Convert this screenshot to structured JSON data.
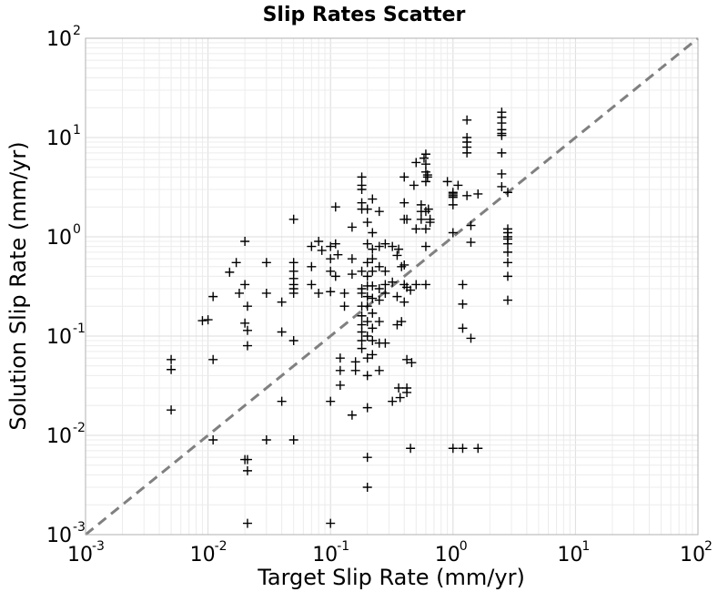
{
  "chart_data": {
    "type": "scatter",
    "title": "Slip Rates Scatter",
    "xlabel": "Target Slip Rate (mm/yr)",
    "ylabel": "Solution Slip Rate (mm/yr)",
    "xscale": "log",
    "yscale": "log",
    "xlim": [
      0.001,
      100
    ],
    "ylim": [
      0.001,
      100
    ],
    "grid": true,
    "marker": "+",
    "marker_color": "#000000",
    "reference_line": {
      "style": "dashed",
      "color": "#808080",
      "from": [
        0.001,
        0.001
      ],
      "to": [
        100,
        100
      ]
    },
    "x_ticks": [
      {
        "base": "10",
        "exp": "-3",
        "value": 0.001
      },
      {
        "base": "10",
        "exp": "-2",
        "value": 0.01
      },
      {
        "base": "10",
        "exp": "-1",
        "value": 0.1
      },
      {
        "base": "10",
        "exp": "0",
        "value": 1
      },
      {
        "base": "10",
        "exp": "1",
        "value": 10
      },
      {
        "base": "10",
        "exp": "2",
        "value": 100
      }
    ],
    "y_ticks": [
      {
        "base": "10",
        "exp": "-3",
        "value": 0.001
      },
      {
        "base": "10",
        "exp": "-2",
        "value": 0.01
      },
      {
        "base": "10",
        "exp": "-1",
        "value": 0.1
      },
      {
        "base": "10",
        "exp": "0",
        "value": 1
      },
      {
        "base": "10",
        "exp": "1",
        "value": 10
      },
      {
        "base": "10",
        "exp": "2",
        "value": 100
      }
    ],
    "points": [
      [
        0.005,
        0.058
      ],
      [
        0.005,
        0.046
      ],
      [
        0.005,
        0.018
      ],
      [
        0.009,
        0.143
      ],
      [
        0.01,
        0.146
      ],
      [
        0.011,
        0.25
      ],
      [
        0.011,
        0.058
      ],
      [
        0.011,
        0.009
      ],
      [
        0.015,
        0.44
      ],
      [
        0.017,
        0.55
      ],
      [
        0.018,
        0.27
      ],
      [
        0.02,
        0.33
      ],
      [
        0.02,
        0.9
      ],
      [
        0.02,
        0.0057
      ],
      [
        0.021,
        0.0057
      ],
      [
        0.021,
        0.0044
      ],
      [
        0.021,
        0.0013
      ],
      [
        0.02,
        0.135
      ],
      [
        0.021,
        0.114
      ],
      [
        0.021,
        0.08
      ],
      [
        0.021,
        0.2
      ],
      [
        0.03,
        0.55
      ],
      [
        0.03,
        0.27
      ],
      [
        0.03,
        0.009
      ],
      [
        0.04,
        0.11
      ],
      [
        0.04,
        0.022
      ],
      [
        0.04,
        0.22
      ],
      [
        0.05,
        1.5
      ],
      [
        0.05,
        0.55
      ],
      [
        0.05,
        0.45
      ],
      [
        0.05,
        0.38
      ],
      [
        0.05,
        0.33
      ],
      [
        0.05,
        0.3
      ],
      [
        0.05,
        0.27
      ],
      [
        0.05,
        0.09
      ],
      [
        0.05,
        0.009
      ],
      [
        0.07,
        0.33
      ],
      [
        0.07,
        0.5
      ],
      [
        0.07,
        0.8
      ],
      [
        0.08,
        0.9
      ],
      [
        0.08,
        0.27
      ],
      [
        0.085,
        0.73
      ],
      [
        0.1,
        0.8
      ],
      [
        0.1,
        0.6
      ],
      [
        0.1,
        0.45
      ],
      [
        0.1,
        0.28
      ],
      [
        0.1,
        0.022
      ],
      [
        0.1,
        0.0013
      ],
      [
        0.11,
        2.0
      ],
      [
        0.11,
        0.85
      ],
      [
        0.115,
        0.66
      ],
      [
        0.11,
        0.4
      ],
      [
        0.12,
        0.06
      ],
      [
        0.12,
        0.045
      ],
      [
        0.12,
        0.032
      ],
      [
        0.13,
        0.27
      ],
      [
        0.13,
        0.2
      ],
      [
        0.15,
        1.25
      ],
      [
        0.15,
        0.6
      ],
      [
        0.15,
        0.42
      ],
      [
        0.15,
        0.016
      ],
      [
        0.16,
        0.055
      ],
      [
        0.16,
        0.045
      ],
      [
        0.18,
        4.0
      ],
      [
        0.18,
        3.3
      ],
      [
        0.18,
        3.0
      ],
      [
        0.18,
        2.2
      ],
      [
        0.18,
        1.9
      ],
      [
        0.18,
        0.45
      ],
      [
        0.18,
        0.3
      ],
      [
        0.18,
        0.27
      ],
      [
        0.18,
        0.2
      ],
      [
        0.18,
        0.16
      ],
      [
        0.18,
        0.13
      ],
      [
        0.18,
        0.11
      ],
      [
        0.18,
        0.09
      ],
      [
        0.18,
        0.075
      ],
      [
        0.2,
        1.9
      ],
      [
        0.2,
        1.4
      ],
      [
        0.2,
        0.85
      ],
      [
        0.2,
        0.55
      ],
      [
        0.2,
        0.4
      ],
      [
        0.2,
        0.32
      ],
      [
        0.2,
        0.25
      ],
      [
        0.2,
        0.2
      ],
      [
        0.2,
        0.14
      ],
      [
        0.2,
        0.1
      ],
      [
        0.2,
        0.06
      ],
      [
        0.2,
        0.04
      ],
      [
        0.2,
        0.019
      ],
      [
        0.2,
        0.006
      ],
      [
        0.2,
        0.003
      ],
      [
        0.22,
        2.4
      ],
      [
        0.22,
        1.1
      ],
      [
        0.22,
        0.75
      ],
      [
        0.22,
        0.6
      ],
      [
        0.22,
        0.45
      ],
      [
        0.22,
        0.32
      ],
      [
        0.22,
        0.24
      ],
      [
        0.22,
        0.17
      ],
      [
        0.22,
        0.12
      ],
      [
        0.22,
        0.09
      ],
      [
        0.22,
        0.065
      ],
      [
        0.25,
        1.8
      ],
      [
        0.25,
        0.8
      ],
      [
        0.25,
        0.5
      ],
      [
        0.25,
        0.3
      ],
      [
        0.25,
        0.23
      ],
      [
        0.25,
        0.14
      ],
      [
        0.25,
        0.085
      ],
      [
        0.25,
        0.045
      ],
      [
        0.28,
        0.85
      ],
      [
        0.28,
        0.45
      ],
      [
        0.28,
        0.33
      ],
      [
        0.28,
        0.27
      ],
      [
        0.28,
        0.085
      ],
      [
        0.32,
        0.8
      ],
      [
        0.32,
        0.35
      ],
      [
        0.32,
        0.022
      ],
      [
        0.35,
        0.65
      ],
      [
        0.35,
        0.25
      ],
      [
        0.35,
        0.13
      ],
      [
        0.36,
        0.75
      ],
      [
        0.36,
        0.03
      ],
      [
        0.37,
        0.024
      ],
      [
        0.38,
        0.5
      ],
      [
        0.38,
        0.14
      ],
      [
        0.4,
        4.0
      ],
      [
        0.4,
        2.2
      ],
      [
        0.4,
        1.5
      ],
      [
        0.4,
        0.52
      ],
      [
        0.4,
        0.33
      ],
      [
        0.4,
        0.22
      ],
      [
        0.42,
        1.5
      ],
      [
        0.42,
        0.31
      ],
      [
        0.42,
        0.058
      ],
      [
        0.42,
        0.03
      ],
      [
        0.42,
        0.027
      ],
      [
        0.45,
        0.29
      ],
      [
        0.45,
        0.0074
      ],
      [
        0.46,
        0.054
      ],
      [
        0.48,
        3.3
      ],
      [
        0.5,
        5.6
      ],
      [
        0.5,
        1.2
      ],
      [
        0.5,
        0.33
      ],
      [
        0.55,
        2.1
      ],
      [
        0.55,
        1.8
      ],
      [
        0.55,
        1.5
      ],
      [
        0.58,
        6.2
      ],
      [
        0.6,
        6.8
      ],
      [
        0.6,
        5.4
      ],
      [
        0.6,
        4.5
      ],
      [
        0.6,
        3.6
      ],
      [
        0.6,
        1.8
      ],
      [
        0.6,
        1.2
      ],
      [
        0.6,
        0.8
      ],
      [
        0.6,
        0.33
      ],
      [
        0.62,
        4.2
      ],
      [
        0.62,
        4.0
      ],
      [
        0.63,
        1.9
      ],
      [
        0.65,
        1.5
      ],
      [
        0.65,
        1.4
      ],
      [
        0.9,
        3.6
      ],
      [
        1.0,
        2.8
      ],
      [
        1.0,
        2.7
      ],
      [
        1.0,
        2.6
      ],
      [
        1.0,
        2.5
      ],
      [
        1.0,
        2.1
      ],
      [
        1.0,
        1.1
      ],
      [
        1.0,
        0.0074
      ],
      [
        1.1,
        3.3
      ],
      [
        1.2,
        0.33
      ],
      [
        1.2,
        0.21
      ],
      [
        1.2,
        0.12
      ],
      [
        1.2,
        0.0074
      ],
      [
        1.3,
        15
      ],
      [
        1.3,
        10
      ],
      [
        1.3,
        9
      ],
      [
        1.3,
        8
      ],
      [
        1.3,
        7
      ],
      [
        1.3,
        2.6
      ],
      [
        1.4,
        1.3
      ],
      [
        1.4,
        0.88
      ],
      [
        1.4,
        0.095
      ],
      [
        1.6,
        2.7
      ],
      [
        1.6,
        0.0074
      ],
      [
        2.5,
        18
      ],
      [
        2.5,
        16
      ],
      [
        2.5,
        14
      ],
      [
        2.5,
        12
      ],
      [
        2.5,
        11
      ],
      [
        2.5,
        10.5
      ],
      [
        2.5,
        7
      ],
      [
        2.5,
        4.3
      ],
      [
        2.5,
        3.2
      ],
      [
        2.8,
        2.8
      ],
      [
        2.8,
        1.2
      ],
      [
        2.8,
        1.1
      ],
      [
        2.8,
        1.0
      ],
      [
        2.8,
        0.95
      ],
      [
        2.8,
        0.85
      ],
      [
        2.8,
        0.7
      ],
      [
        2.8,
        0.55
      ],
      [
        2.8,
        0.4
      ],
      [
        2.8,
        0.23
      ]
    ]
  }
}
